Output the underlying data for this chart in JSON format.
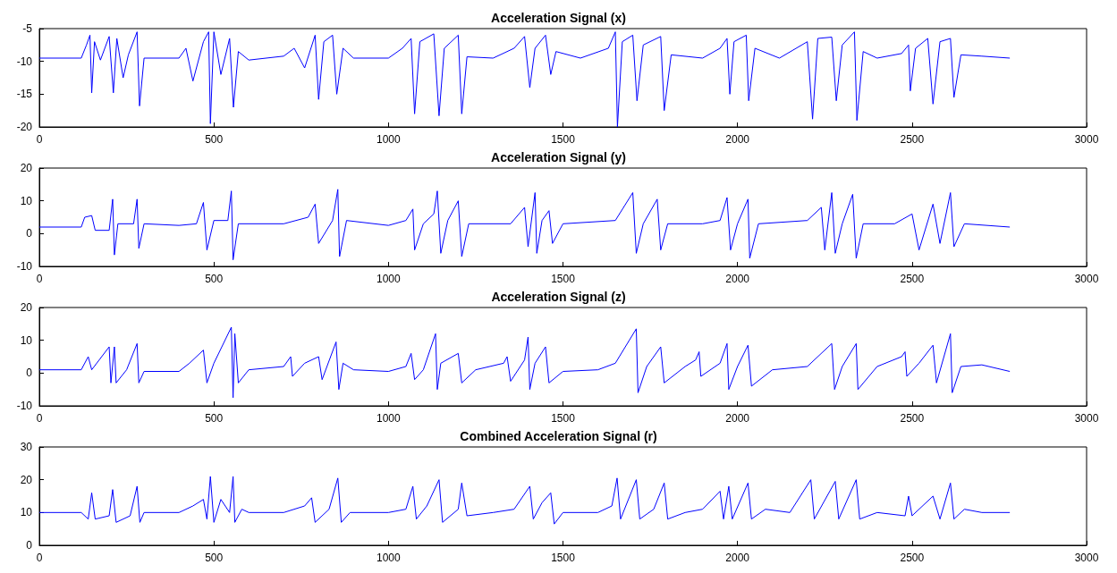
{
  "chart_data": [
    {
      "type": "line",
      "title": "Acceleration Signal (x)",
      "xlim": [
        0,
        3000
      ],
      "xticks": [
        0,
        500,
        1000,
        1500,
        2000,
        2500,
        3000
      ],
      "ylim": [
        -20,
        -5
      ],
      "yticks": [
        -20,
        -15,
        -10,
        -5
      ],
      "grid": false,
      "marker": "none",
      "line_style": "solid",
      "x": [
        0,
        120,
        135,
        145,
        150,
        158,
        175,
        200,
        212,
        222,
        240,
        255,
        280,
        287,
        300,
        400,
        420,
        440,
        470,
        485,
        490,
        500,
        520,
        545,
        556,
        570,
        600,
        700,
        730,
        760,
        790,
        800,
        815,
        840,
        852,
        870,
        900,
        1000,
        1040,
        1065,
        1075,
        1090,
        1130,
        1145,
        1160,
        1200,
        1210,
        1225,
        1300,
        1360,
        1390,
        1405,
        1420,
        1450,
        1465,
        1480,
        1550,
        1630,
        1650,
        1656,
        1670,
        1700,
        1712,
        1730,
        1780,
        1790,
        1810,
        1900,
        1950,
        1970,
        1978,
        1990,
        2025,
        2032,
        2050,
        2120,
        2200,
        2215,
        2230,
        2270,
        2283,
        2300,
        2335,
        2342,
        2360,
        2400,
        2470,
        2490,
        2495,
        2510,
        2545,
        2560,
        2580,
        2610,
        2620,
        2640,
        2700,
        2780
      ],
      "series": [
        {
          "color": "#0000ff",
          "values": [
            -9.5,
            -9.5,
            -7.5,
            -6,
            -14.8,
            -7,
            -9.8,
            -6.2,
            -14.8,
            -6.5,
            -12.5,
            -9,
            -5.5,
            -16.8,
            -9.5,
            -9.5,
            -8,
            -13,
            -7,
            -5.5,
            -19.5,
            -5.5,
            -12,
            -6.5,
            -17,
            -8.5,
            -9.8,
            -9.2,
            -8,
            -11,
            -6,
            -15.8,
            -7,
            -6,
            -15,
            -8,
            -9.5,
            -9.5,
            -8,
            -6.5,
            -18,
            -7,
            -5.8,
            -18.3,
            -8,
            -6,
            -18,
            -9.3,
            -9.5,
            -8,
            -6.2,
            -14,
            -8,
            -6,
            -12,
            -8.5,
            -9.5,
            -8,
            -5.5,
            -20,
            -7,
            -6,
            -16,
            -7.5,
            -6.2,
            -17.5,
            -9,
            -9.5,
            -8,
            -6.5,
            -15,
            -7,
            -6,
            -16,
            -8,
            -9.5,
            -7,
            -18.8,
            -6.5,
            -6.3,
            -16,
            -7.5,
            -5.5,
            -19,
            -8.5,
            -9.5,
            -8.8,
            -7.5,
            -14.5,
            -8,
            -6.5,
            -16.5,
            -7,
            -6.5,
            -15.5,
            -9,
            -9.2,
            -9.5
          ]
        }
      ]
    },
    {
      "type": "line",
      "title": "Acceleration Signal (y)",
      "xlim": [
        0,
        3000
      ],
      "xticks": [
        0,
        500,
        1000,
        1500,
        2000,
        2500,
        3000
      ],
      "ylim": [
        -10,
        20
      ],
      "yticks": [
        -10,
        0,
        10,
        20
      ],
      "grid": false,
      "marker": "none",
      "line_style": "solid",
      "x": [
        0,
        120,
        130,
        150,
        160,
        200,
        210,
        215,
        225,
        270,
        280,
        285,
        300,
        400,
        450,
        470,
        480,
        500,
        540,
        550,
        555,
        570,
        700,
        770,
        790,
        800,
        840,
        855,
        860,
        880,
        1000,
        1050,
        1070,
        1075,
        1100,
        1130,
        1140,
        1150,
        1170,
        1200,
        1210,
        1230,
        1350,
        1390,
        1400,
        1420,
        1425,
        1440,
        1460,
        1470,
        1500,
        1650,
        1700,
        1710,
        1730,
        1770,
        1780,
        1800,
        1900,
        1950,
        1970,
        1980,
        2000,
        2030,
        2035,
        2060,
        2200,
        2240,
        2250,
        2270,
        2280,
        2300,
        2330,
        2340,
        2360,
        2450,
        2500,
        2520,
        2560,
        2580,
        2610,
        2620,
        2650,
        2780
      ],
      "series": [
        {
          "color": "#0000ff",
          "values": [
            2,
            2,
            5,
            5.5,
            1,
            1,
            10.5,
            -6.5,
            3,
            3,
            10.5,
            -4.5,
            3,
            2.5,
            3,
            9.5,
            -5,
            4,
            4,
            13,
            -8,
            3,
            3,
            5,
            9,
            -3,
            4,
            13.5,
            -7,
            4,
            2.5,
            4,
            7.5,
            -5,
            3,
            6,
            13,
            -6,
            4,
            10,
            -7,
            3,
            3,
            8,
            -4,
            12.5,
            -6,
            4,
            7,
            -3,
            3,
            4,
            12.5,
            -6,
            3,
            10.5,
            -5,
            3,
            3,
            4,
            11,
            -5,
            3,
            10.5,
            -7.5,
            3,
            4,
            8,
            -5,
            12.5,
            -6,
            3,
            12,
            -7.5,
            3,
            3,
            6,
            -5,
            9,
            -3,
            12.5,
            -4,
            3,
            2
          ]
        }
      ]
    },
    {
      "type": "line",
      "title": "Acceleration Signal (z)",
      "xlim": [
        0,
        3000
      ],
      "xticks": [
        0,
        500,
        1000,
        1500,
        2000,
        2500,
        3000
      ],
      "ylim": [
        -10,
        20
      ],
      "yticks": [
        -10,
        0,
        10,
        20
      ],
      "grid": false,
      "marker": "none",
      "line_style": "solid",
      "x": [
        0,
        120,
        140,
        150,
        200,
        205,
        215,
        220,
        250,
        280,
        285,
        300,
        400,
        430,
        470,
        480,
        500,
        550,
        555,
        560,
        570,
        600,
        700,
        720,
        725,
        760,
        800,
        810,
        850,
        858,
        870,
        900,
        1000,
        1050,
        1065,
        1075,
        1100,
        1135,
        1140,
        1150,
        1200,
        1210,
        1250,
        1330,
        1340,
        1350,
        1390,
        1400,
        1405,
        1420,
        1450,
        1460,
        1500,
        1600,
        1650,
        1710,
        1715,
        1740,
        1780,
        1790,
        1850,
        1880,
        1890,
        1895,
        1950,
        1970,
        1975,
        2000,
        2030,
        2040,
        2100,
        2200,
        2270,
        2278,
        2300,
        2340,
        2345,
        2400,
        2470,
        2480,
        2485,
        2520,
        2560,
        2570,
        2610,
        2615,
        2640,
        2700,
        2780
      ],
      "series": [
        {
          "color": "#0000ff",
          "values": [
            1,
            1,
            5,
            1,
            8,
            -3,
            8,
            -3,
            1,
            9,
            -3,
            0.5,
            0.5,
            3,
            7,
            -3,
            3,
            14,
            -7.5,
            12,
            -3,
            1,
            2,
            5,
            -1,
            3,
            5,
            -2,
            9.5,
            -5,
            3,
            1,
            0.5,
            2,
            6,
            -2,
            1,
            12,
            -5,
            3,
            6,
            -3,
            1,
            3,
            5,
            -2.5,
            4,
            11,
            -5,
            3,
            8,
            -3,
            0.5,
            1,
            3,
            13.5,
            -6,
            2,
            8,
            -3,
            2,
            4,
            6.5,
            -1,
            3,
            9,
            -5,
            2,
            8.5,
            -4,
            1,
            2,
            9,
            -5,
            2,
            9,
            -5,
            2,
            5,
            6.5,
            -1,
            3,
            8.5,
            -3,
            12,
            -6,
            2,
            2.5,
            0.5
          ]
        }
      ]
    },
    {
      "type": "line",
      "title": "Combined Acceleration Signal (r)",
      "xlim": [
        0,
        3000
      ],
      "xticks": [
        0,
        500,
        1000,
        1500,
        2000,
        2500,
        3000
      ],
      "ylim": [
        0,
        30
      ],
      "yticks": [
        0,
        10,
        20,
        30
      ],
      "grid": false,
      "marker": "none",
      "line_style": "solid",
      "x": [
        0,
        120,
        140,
        150,
        160,
        200,
        210,
        220,
        260,
        280,
        288,
        300,
        400,
        440,
        470,
        480,
        490,
        500,
        520,
        545,
        555,
        560,
        580,
        600,
        700,
        760,
        780,
        790,
        830,
        855,
        865,
        890,
        1000,
        1050,
        1070,
        1080,
        1110,
        1145,
        1155,
        1200,
        1210,
        1225,
        1300,
        1360,
        1405,
        1415,
        1440,
        1465,
        1475,
        1500,
        1600,
        1640,
        1655,
        1665,
        1710,
        1720,
        1760,
        1790,
        1800,
        1850,
        1900,
        1950,
        1960,
        1975,
        1985,
        2030,
        2040,
        2080,
        2150,
        2210,
        2220,
        2280,
        2290,
        2340,
        2350,
        2400,
        2480,
        2490,
        2500,
        2560,
        2580,
        2610,
        2620,
        2650,
        2700,
        2780
      ],
      "series": [
        {
          "color": "#0000ff",
          "values": [
            10,
            10,
            8,
            16,
            8,
            9,
            17,
            7,
            9,
            18,
            7,
            10,
            10,
            12,
            14,
            8,
            21,
            7,
            14,
            10,
            21,
            7,
            11,
            10,
            10,
            12,
            14.5,
            7,
            11,
            20.5,
            7,
            10,
            10,
            11,
            18,
            8,
            12,
            20,
            7,
            11,
            19,
            9,
            10,
            11,
            18,
            8,
            13,
            16,
            6.5,
            10,
            10,
            12,
            20.5,
            8,
            20,
            8,
            11,
            19,
            8,
            10,
            11,
            16.5,
            8,
            18,
            8,
            19,
            8,
            11,
            10,
            20,
            8,
            19.5,
            8,
            20,
            8,
            10,
            9,
            15,
            9,
            15,
            8,
            19,
            8,
            11,
            10,
            10
          ]
        }
      ]
    }
  ]
}
